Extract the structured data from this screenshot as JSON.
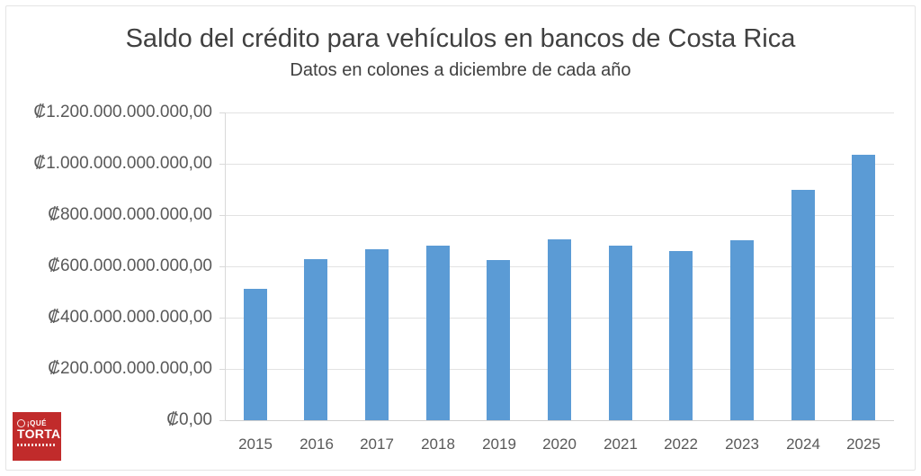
{
  "header": {
    "title": "Saldo del crédito para vehículos en bancos de Costa Rica",
    "subtitle": "Datos en colones a diciembre de cada año"
  },
  "chart_data": {
    "type": "bar",
    "title": "Saldo del crédito para vehículos en bancos de Costa Rica",
    "subtitle": "Datos en colones a diciembre de cada año",
    "categories": [
      "2015",
      "2016",
      "2017",
      "2018",
      "2019",
      "2020",
      "2021",
      "2022",
      "2023",
      "2024",
      "2025"
    ],
    "series": [
      {
        "name": "Saldo del crédito para vehículos",
        "values_billions_crc": [
          514,
          628,
          666,
          681,
          625,
          704,
          681,
          660,
          703,
          897,
          1035
        ]
      }
    ],
    "unit": "colones (CRC)",
    "xlabel": "",
    "ylabel": "",
    "y_axis": {
      "min_billions": 0,
      "max_billions": 1200,
      "tick_step_billions": 200,
      "tick_labels": [
        "₡0,00",
        "₡200.000.000.000,00",
        "₡400.000.000.000,00",
        "₡600.000.000.000,00",
        "₡800.000.000.000,00",
        "₡1.000.000.000.000,00",
        "₡1.200.000.000.000,00"
      ]
    },
    "grid": true,
    "legend": "none",
    "bar_color": "#5B9BD5",
    "gridline_color": "#E2E2E2",
    "text_color": "#595959"
  },
  "logo": {
    "prefix": "¡QUÉ",
    "name": "TORTA!",
    "bg_color": "#C12B2B"
  }
}
